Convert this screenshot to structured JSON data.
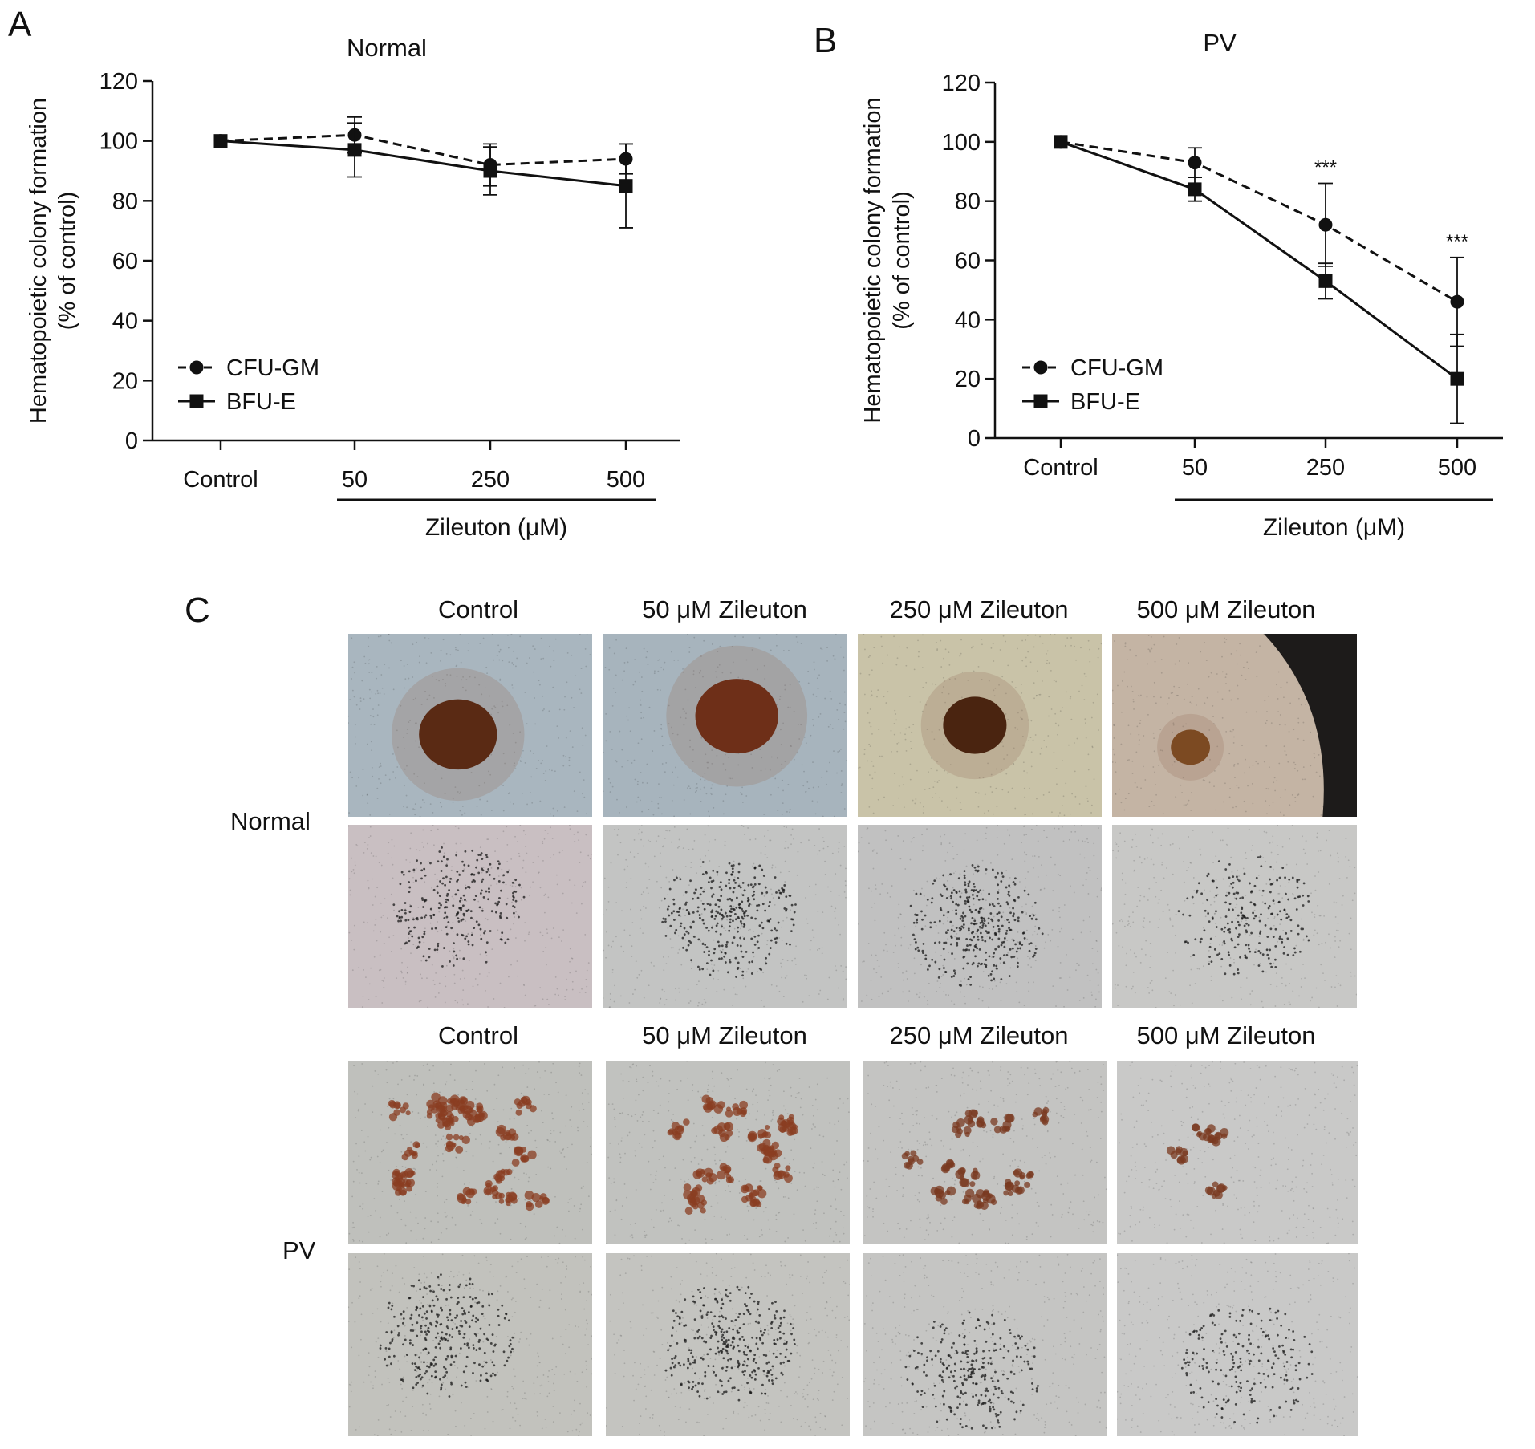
{
  "panels": {
    "a": "A",
    "b": "B",
    "c": "C"
  },
  "chart_data": [
    {
      "type": "line",
      "panel": "A",
      "title": "Normal",
      "ylabel_line1": "Hematopoietic colony formation",
      "ylabel_line2": "(% of control)",
      "xlabel": "Zileuton (μM)",
      "categories": [
        "Control",
        "50",
        "250",
        "500"
      ],
      "ylim": [
        0,
        120
      ],
      "yticks": [
        0,
        20,
        40,
        60,
        80,
        100,
        120
      ],
      "series": [
        {
          "name": "CFU-GM",
          "style": "dashed",
          "marker": "circle",
          "values": [
            100,
            102,
            92,
            94
          ],
          "errors": [
            0,
            6,
            7,
            5
          ]
        },
        {
          "name": "BFU-E",
          "style": "solid",
          "marker": "square",
          "values": [
            100,
            97,
            90,
            85
          ],
          "errors": [
            0,
            9,
            8,
            14
          ]
        }
      ],
      "annotations": [
        "",
        "",
        "",
        ""
      ],
      "legend": "bottom-left"
    },
    {
      "type": "line",
      "panel": "B",
      "title": "PV",
      "ylabel_line1": "Hematopoietic colony formation",
      "ylabel_line2": "(% of control)",
      "xlabel": "Zileuton (μM)",
      "categories": [
        "Control",
        "50",
        "250",
        "500"
      ],
      "ylim": [
        0,
        120
      ],
      "yticks": [
        0,
        20,
        40,
        60,
        80,
        100,
        120
      ],
      "series": [
        {
          "name": "CFU-GM",
          "style": "dashed",
          "marker": "circle",
          "values": [
            100,
            93,
            72,
            46
          ],
          "errors": [
            0,
            5,
            14,
            15
          ]
        },
        {
          "name": "BFU-E",
          "style": "solid",
          "marker": "square",
          "values": [
            100,
            84,
            53,
            20
          ],
          "errors": [
            0,
            4,
            6,
            15
          ]
        }
      ],
      "annotations": [
        "",
        "",
        "***",
        "***"
      ],
      "legend": "bottom-left"
    }
  ],
  "panel_c": {
    "column_labels": [
      "Control",
      "50 μM Zileuton",
      "250 μM Zileuton",
      "500 μM Zileuton"
    ],
    "row_labels": {
      "normal": "Normal",
      "pv": "PV"
    }
  }
}
